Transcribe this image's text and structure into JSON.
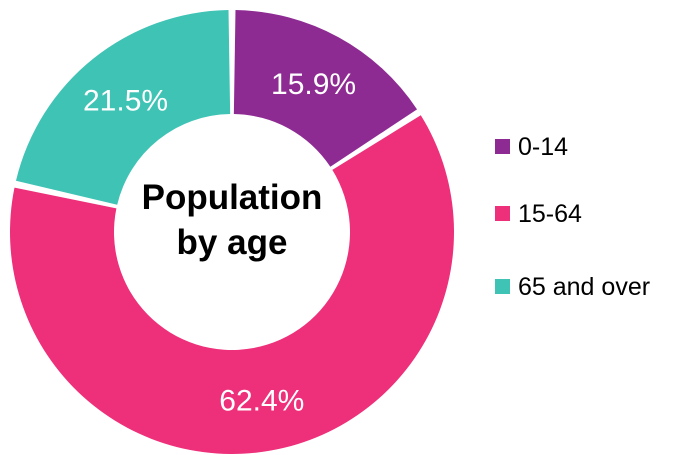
{
  "chart_data": {
    "type": "pie",
    "variant": "donut",
    "title": "Population by age",
    "title_lines": [
      "Population",
      "by age"
    ],
    "categories": [
      "0-14",
      "15-64",
      "65 and over"
    ],
    "values": [
      15.9,
      62.4,
      21.5
    ],
    "value_labels": [
      "15.9%",
      "62.4%",
      "21.5%"
    ],
    "unit": "%",
    "colors": [
      "#8e2b93",
      "#ee2f7a",
      "#3ec3b5"
    ],
    "legend": {
      "position": "right",
      "entries": [
        "0-14",
        "15-64",
        "65 and over"
      ]
    }
  }
}
